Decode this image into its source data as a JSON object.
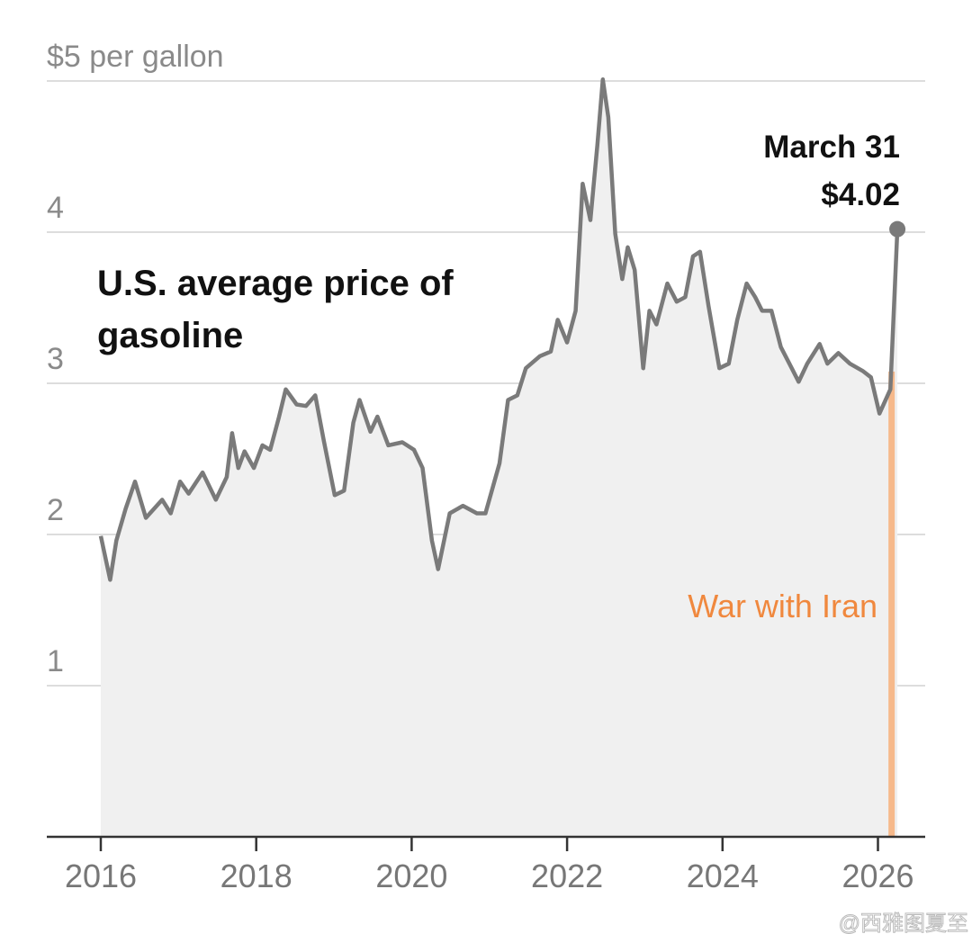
{
  "chart_data": {
    "type": "area",
    "title": "U.S. average price of gasoline",
    "title_lines": [
      "U.S. average price of",
      "gasoline"
    ],
    "ylabel": "$5 per gallon",
    "yticks": [
      1,
      2,
      3,
      4,
      5
    ],
    "ytick_labels": [
      "1",
      "2",
      "3",
      "4",
      "$5 per gallon"
    ],
    "ylim": [
      0,
      5
    ],
    "xlim": [
      2015.65,
      2026.6
    ],
    "xticks": [
      2016,
      2018,
      2020,
      2022,
      2024,
      2026
    ],
    "xtick_labels": [
      "2016",
      "2018",
      "2020",
      "2022",
      "2024",
      "2026"
    ],
    "grid": "horizontal",
    "colors": {
      "line": "#7a7a7a",
      "fill": "#f0f0f0",
      "event": "#f6b98b",
      "event_text": "#f0883e",
      "grid": "#dddddd",
      "axis": "#333333"
    },
    "event": {
      "label": "War with Iran",
      "x": 2026.17
    },
    "end_annotation": {
      "date": "March 31",
      "value_label": "$4.02",
      "x": 2026.25,
      "y": 4.02
    },
    "series": [
      {
        "x": [
          2016.0,
          2016.12,
          2016.2,
          2016.32,
          2016.44,
          2016.58,
          2016.79,
          2016.9,
          2017.02,
          2017.13,
          2017.31,
          2017.48,
          2017.62,
          2017.69,
          2017.77,
          2017.85,
          2017.97,
          2018.08,
          2018.18,
          2018.29,
          2018.38,
          2018.52,
          2018.64,
          2018.76,
          2018.87,
          2019.01,
          2019.13,
          2019.25,
          2019.33,
          2019.47,
          2019.56,
          2019.7,
          2019.88,
          2020.03,
          2020.14,
          2020.26,
          2020.34,
          2020.49,
          2020.66,
          2020.84,
          2020.95,
          2021.13,
          2021.24,
          2021.36,
          2021.47,
          2021.65,
          2021.79,
          2021.88,
          2022.0,
          2022.11,
          2022.2,
          2022.3,
          2022.39,
          2022.46,
          2022.53,
          2022.62,
          2022.71,
          2022.78,
          2022.87,
          2022.98,
          2023.06,
          2023.15,
          2023.29,
          2023.41,
          2023.52,
          2023.62,
          2023.71,
          2023.82,
          2023.96,
          2024.08,
          2024.19,
          2024.31,
          2024.42,
          2024.51,
          2024.63,
          2024.75,
          2024.89,
          2024.98,
          2025.09,
          2025.25,
          2025.35,
          2025.49,
          2025.64,
          2025.81,
          2025.91,
          2026.02,
          2026.16,
          2026.25
        ],
        "y": [
          1.99,
          1.7,
          1.96,
          2.17,
          2.35,
          2.11,
          2.23,
          2.14,
          2.35,
          2.27,
          2.41,
          2.23,
          2.38,
          2.67,
          2.44,
          2.55,
          2.44,
          2.59,
          2.56,
          2.77,
          2.96,
          2.86,
          2.85,
          2.92,
          2.62,
          2.26,
          2.29,
          2.74,
          2.89,
          2.68,
          2.78,
          2.59,
          2.61,
          2.56,
          2.44,
          1.96,
          1.77,
          2.14,
          2.19,
          2.14,
          2.14,
          2.47,
          2.89,
          2.92,
          3.1,
          3.18,
          3.21,
          3.42,
          3.27,
          3.48,
          4.32,
          4.08,
          4.58,
          5.01,
          4.76,
          3.99,
          3.69,
          3.9,
          3.75,
          3.1,
          3.48,
          3.39,
          3.66,
          3.54,
          3.57,
          3.84,
          3.87,
          3.51,
          3.1,
          3.13,
          3.42,
          3.66,
          3.57,
          3.48,
          3.48,
          3.24,
          3.1,
          3.01,
          3.13,
          3.26,
          3.13,
          3.2,
          3.13,
          3.08,
          3.04,
          2.8,
          2.96,
          4.02
        ]
      }
    ]
  },
  "watermark": "@西雅图夏至"
}
